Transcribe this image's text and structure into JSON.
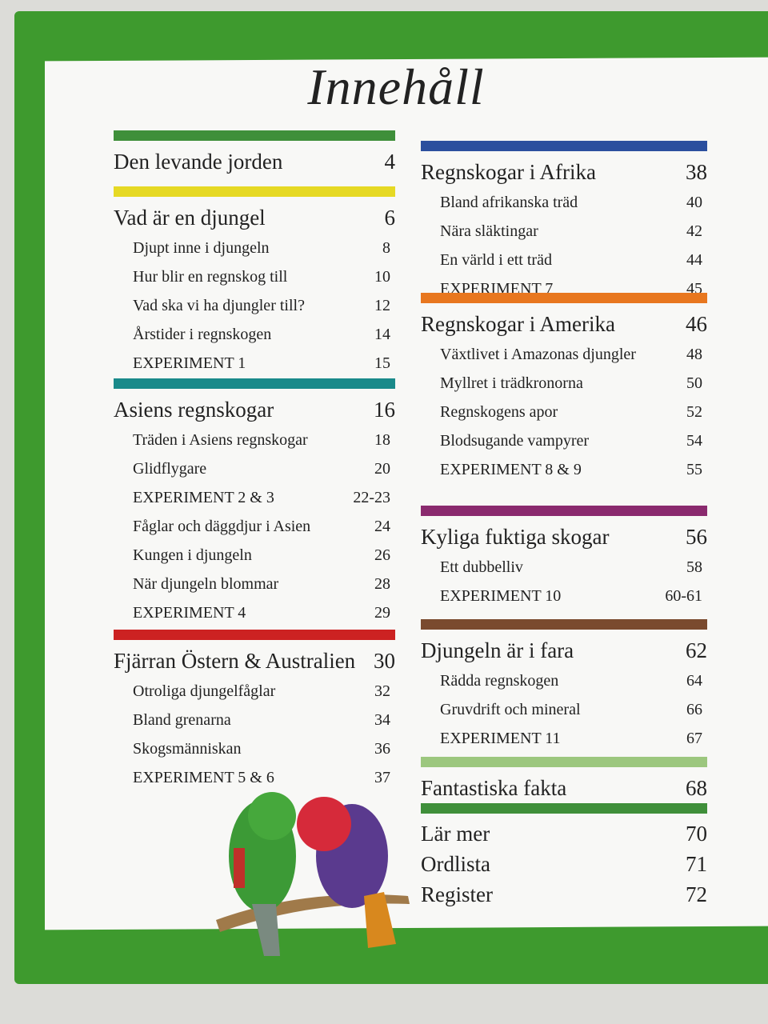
{
  "title": "Innehåll",
  "columns": [
    {
      "sections": [
        {
          "color": "#3f8f3a",
          "title": "Den levande jorden",
          "page": "4",
          "entries": []
        },
        {
          "color": "#e6d924",
          "title": "Vad är en djungel",
          "page": "6",
          "entries": [
            {
              "title": "Djupt inne i djungeln",
              "page": "8"
            },
            {
              "title": "Hur blir en regnskog till",
              "page": "10"
            },
            {
              "title": "Vad ska vi ha djungler till?",
              "page": "12"
            },
            {
              "title": "Årstider i regnskogen",
              "page": "14"
            },
            {
              "title": "EXPERIMENT 1",
              "page": "15"
            }
          ]
        },
        {
          "color": "#1a8a8a",
          "title": "Asiens regnskogar",
          "page": "16",
          "entries": [
            {
              "title": "Träden i Asiens regnskogar",
              "page": "18"
            },
            {
              "title": "Glidflygare",
              "page": "20"
            },
            {
              "title": "EXPERIMENT 2 & 3",
              "page": "22-23"
            },
            {
              "title": "Fåglar och däggdjur i Asien",
              "page": "24"
            },
            {
              "title": "Kungen i djungeln",
              "page": "26"
            },
            {
              "title": "När djungeln blommar",
              "page": "28"
            },
            {
              "title": "EXPERIMENT 4",
              "page": "29"
            }
          ]
        },
        {
          "color": "#cc2222",
          "title": "Fjärran Östern & Australien",
          "page": "30",
          "entries": [
            {
              "title": "Otroliga djungelfåglar",
              "page": "32"
            },
            {
              "title": "Bland grenarna",
              "page": "34"
            },
            {
              "title": "Skogsmänniskan",
              "page": "36"
            },
            {
              "title": "EXPERIMENT 5 & 6",
              "page": "37"
            }
          ]
        }
      ]
    },
    {
      "sections": [
        {
          "color": "#2b4f9e",
          "title": "Regnskogar i Afrika",
          "page": "38",
          "entries": [
            {
              "title": "Bland afrikanska träd",
              "page": "40"
            },
            {
              "title": "Nära släktingar",
              "page": "42"
            },
            {
              "title": "En värld i ett träd",
              "page": "44"
            },
            {
              "title": "EXPERIMENT 7",
              "page": "45"
            }
          ]
        },
        {
          "color": "#e8771f",
          "title": "Regnskogar i Amerika",
          "page": "46",
          "entries": [
            {
              "title": "Växtlivet i Amazonas djungler",
              "page": "48"
            },
            {
              "title": "Myllret i trädkronorna",
              "page": "50"
            },
            {
              "title": "Regnskogens apor",
              "page": "52"
            },
            {
              "title": "Blodsugande vampyrer",
              "page": "54"
            },
            {
              "title": "EXPERIMENT 8 & 9",
              "page": "55"
            }
          ]
        },
        {
          "color": "#8a2a6e",
          "title": "Kyliga fuktiga skogar",
          "page": "56",
          "entries": [
            {
              "title": "Ett dubbelliv",
              "page": "58"
            },
            {
              "title": "EXPERIMENT 10",
              "page": "60-61"
            }
          ]
        },
        {
          "color": "#7a4a2e",
          "title": "Djungeln är i fara",
          "page": "62",
          "entries": [
            {
              "title": "Rädda regnskogen",
              "page": "64"
            },
            {
              "title": "Gruvdrift och mineral",
              "page": "66"
            },
            {
              "title": "EXPERIMENT 11",
              "page": "67"
            }
          ]
        },
        {
          "color": "#9cc77e",
          "title": "Fantastiska fakta",
          "page": "68",
          "entries": []
        },
        {
          "color": "#3f8f3a",
          "items": [
            {
              "title": "Lär mer",
              "page": "70"
            },
            {
              "title": "Ordlista",
              "page": "71"
            },
            {
              "title": "Register",
              "page": "72"
            }
          ]
        }
      ]
    }
  ]
}
